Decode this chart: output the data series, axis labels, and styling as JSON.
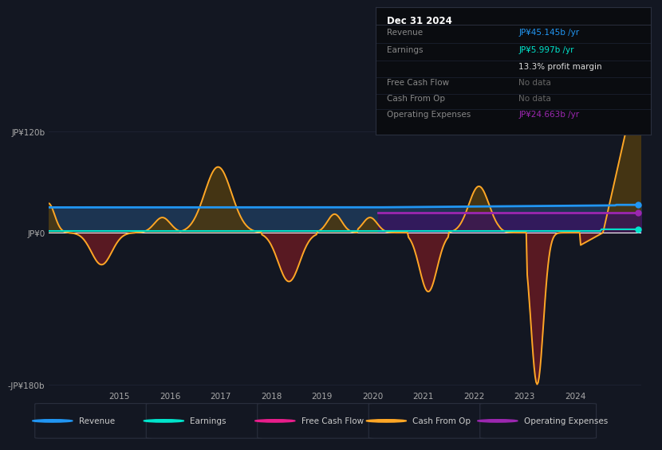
{
  "bg_color": "#131722",
  "plot_bg_color": "#131722",
  "panel_bg": "#0d1117",
  "grid_color": "#1e2435",
  "zero_line_color": "#ffffff",
  "revenue_color": "#2196f3",
  "earnings_color": "#00e5cc",
  "free_cash_flow_color": "#e91e8c",
  "cash_from_op_color": "#ffa726",
  "op_expenses_color": "#9c27b0",
  "revenue_fill_top": "#1a3a5c",
  "revenue_fill_bot": "#0d2040",
  "cfo_pos_fill": "#4a3a15",
  "cfo_neg_fill": "#5a1a22",
  "op_exp_fill": "#3a1a6a",
  "ylim": [
    -185,
    130
  ],
  "ytick_vals": [
    -180,
    0,
    120
  ],
  "ytick_labels": [
    "-JP¥180b",
    "JP¥0",
    "JP¥120b"
  ],
  "xlim_left": 2013.6,
  "xlim_right": 2025.3,
  "xticks": [
    2015,
    2016,
    2017,
    2018,
    2019,
    2020,
    2021,
    2022,
    2023,
    2024
  ],
  "title_date": "Dec 31 2024",
  "info_rows": [
    {
      "label": "Revenue",
      "value": "JP¥45.145b /yr",
      "lcolor": "#888888",
      "vcolor": "#2196f3"
    },
    {
      "label": "Earnings",
      "value": "JP¥5.997b /yr",
      "lcolor": "#888888",
      "vcolor": "#00e5cc"
    },
    {
      "label": "",
      "value": "13.3% profit margin",
      "lcolor": "#888888",
      "vcolor": "#dddddd"
    },
    {
      "label": "Free Cash Flow",
      "value": "No data",
      "lcolor": "#888888",
      "vcolor": "#666666"
    },
    {
      "label": "Cash From Op",
      "value": "No data",
      "lcolor": "#888888",
      "vcolor": "#666666"
    },
    {
      "label": "Operating Expenses",
      "value": "JP¥24.663b /yr",
      "lcolor": "#888888",
      "vcolor": "#9c27b0"
    }
  ],
  "legend_items": [
    {
      "label": "Revenue",
      "color": "#2196f3"
    },
    {
      "label": "Earnings",
      "color": "#00e5cc"
    },
    {
      "label": "Free Cash Flow",
      "color": "#e91e8c"
    },
    {
      "label": "Cash From Op",
      "color": "#ffa726"
    },
    {
      "label": "Operating Expenses",
      "color": "#9c27b0"
    }
  ]
}
